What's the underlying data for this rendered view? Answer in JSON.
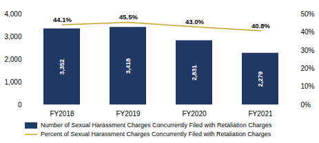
{
  "chart_data": {
    "type": "bar",
    "categories": [
      "FY2018",
      "FY2019",
      "FY2020",
      "FY2021"
    ],
    "series": [
      {
        "name": "Number of Sexual Harassment Charges Concurrently Filed with Retaliation Charges",
        "type": "bar",
        "color": "#1F3864",
        "values": [
          3352,
          3418,
          2831,
          2279
        ],
        "value_labels": [
          "3,352",
          "3,418",
          "2,831",
          "2,279"
        ]
      },
      {
        "name": "Percent of Sexual Harassment Charges Concurrently Filed with Retaliation Charges",
        "type": "line",
        "color": "#C9A227",
        "axis": "y2",
        "values": [
          44.1,
          45.5,
          43.0,
          40.8
        ],
        "value_labels": [
          "44.1%",
          "45.5%",
          "43.0%",
          "40.8%"
        ]
      }
    ],
    "ylim": [
      0,
      4000
    ],
    "yticks": [
      0,
      {
        "value": 1000,
        "label": "1,000"
      },
      {
        "value": 2000,
        "label": "2,000"
      },
      {
        "value": 3000,
        "label": "3,000"
      },
      {
        "value": 4000,
        "label": "4,000"
      }
    ],
    "y2lim": [
      0,
      50
    ],
    "y2ticks": [
      {
        "value": 0,
        "label": "0%"
      },
      {
        "value": 10,
        "label": "10%"
      },
      {
        "value": 20,
        "label": "20%"
      },
      {
        "value": 30,
        "label": "30%"
      },
      {
        "value": 40,
        "label": "40%"
      },
      {
        "value": 50,
        "label": "50%"
      }
    ],
    "data_labels": true,
    "grid": false,
    "legend": "lower left"
  }
}
